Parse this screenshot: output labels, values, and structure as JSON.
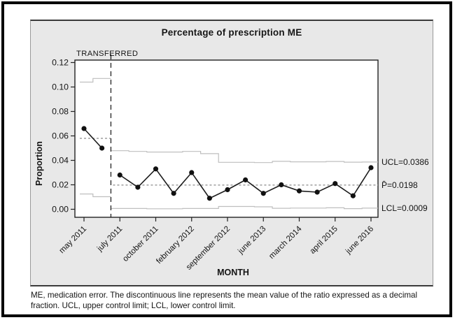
{
  "caption": "ME, medication error. The discontinuous line represents the mean value of the ratio expressed as a decimal fraction. UCL, upper control limit; LCL, lower control limit.",
  "chart_data": {
    "type": "line",
    "subtype": "p-control-chart",
    "title": "Percentage of prescription ME",
    "xlabel": "MONTH",
    "ylabel": "Proportion",
    "phase_label": "TRANSFERRED",
    "ylim": [
      0.0,
      0.12
    ],
    "ytick_step": 0.02,
    "grid": false,
    "legend_position": "right-of-plot",
    "x_tick_labels": [
      "may 2011",
      "july 2011",
      "october 2011",
      "february 2012",
      "september 2012",
      "june 2013",
      "march 2014",
      "april 2015",
      "june 2016"
    ],
    "x_tick_point_indices": [
      0,
      2,
      4,
      6,
      8,
      10,
      12,
      14,
      16
    ],
    "values": [
      0.066,
      0.05,
      0.028,
      0.018,
      0.033,
      0.013,
      0.03,
      0.009,
      0.016,
      0.024,
      0.013,
      0.02,
      0.015,
      0.014,
      0.021,
      0.011,
      0.034
    ],
    "phases": {
      "before_transfer": {
        "point_indices": [
          0,
          1
        ],
        "mean": 0.058,
        "ucl_steps": [
          0.104,
          0.107
        ],
        "lcl_steps": [
          0.0125,
          0.0103
        ]
      },
      "after_transfer": {
        "point_indices": [
          2,
          3,
          4,
          5,
          6,
          7,
          8,
          9,
          10,
          11,
          12,
          13,
          14,
          15,
          16
        ],
        "mean": 0.0198,
        "ucl_steps": [
          0.0479,
          0.0473,
          0.0468,
          0.0468,
          0.0473,
          0.0455,
          0.0384,
          0.0384,
          0.0382,
          0.0392,
          0.0388,
          0.0388,
          0.0391,
          0.0385,
          0.0386
        ],
        "lcl_steps": [
          0.0006,
          0.0006,
          0.0004,
          0.0004,
          0.0006,
          0.0006,
          0.0023,
          0.0023,
          0.002,
          0.0008,
          0.001,
          0.001,
          0.0012,
          0.0005,
          0.0009
        ]
      }
    },
    "annotations": {
      "ucl_label": "UCL=0.0386",
      "mean_label": "P̄=0.0198",
      "lcl_label": "LCL=0.0009",
      "ucl_value": 0.0386,
      "mean_value": 0.0198,
      "lcl_value": 0.0009
    },
    "colors": {
      "data_line": "#1c1c1c",
      "marker": "#111111",
      "control_limit_line": "#bfbfbf",
      "mean_line": "#8a8a8a",
      "panel_background": "#e8e8e8",
      "plot_background": "#ffffff"
    }
  }
}
